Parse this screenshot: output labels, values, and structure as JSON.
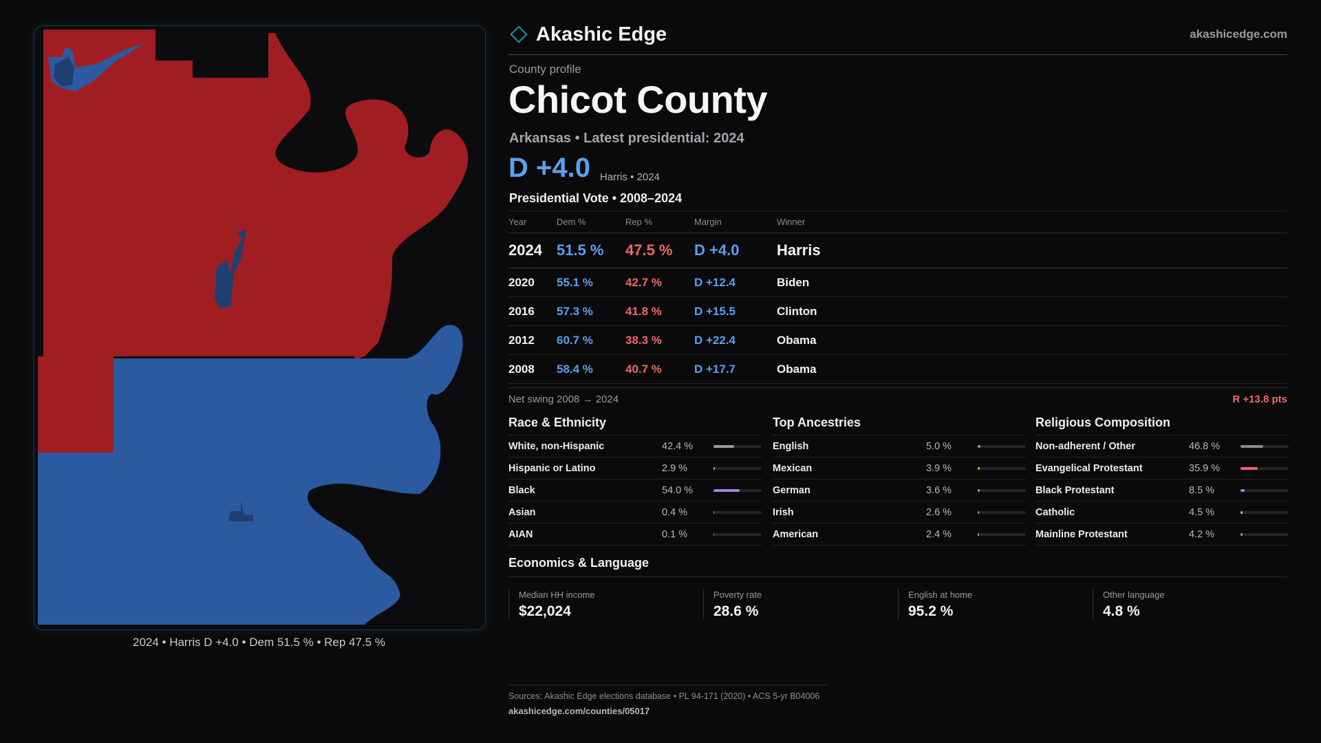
{
  "brand": {
    "name": "Akashic Edge",
    "url": "akashicedge.com",
    "accent": "#1e8fa0"
  },
  "header": {
    "eyebrow": "County profile",
    "title": "Chicot County",
    "subtitle": "Arkansas • Latest presidential: 2024",
    "margin": "D +4.0",
    "margin_note": "Harris • 2024"
  },
  "map": {
    "caption": "2024 • Harris D +4.0 • Dem 51.5 % • Rep 47.5 %",
    "colors": {
      "dem": "#2b5aa0",
      "rep": "#a01e22",
      "dem_dark": "#1f3f70"
    }
  },
  "results": {
    "title": "Presidential Vote • 2008–2024",
    "headers": {
      "year": "Year",
      "dem": "Dem %",
      "rep": "Rep %",
      "margin": "Margin",
      "winner": "Winner"
    },
    "rows": [
      {
        "year": "2024",
        "dem": "51.5 %",
        "rep": "47.5 %",
        "margin": "D +4.0",
        "winner": "Harris"
      },
      {
        "year": "2020",
        "dem": "55.1 %",
        "rep": "42.7 %",
        "margin": "D +12.4",
        "winner": "Biden"
      },
      {
        "year": "2016",
        "dem": "57.3 %",
        "rep": "41.8 %",
        "margin": "D +15.5",
        "winner": "Clinton"
      },
      {
        "year": "2012",
        "dem": "60.7 %",
        "rep": "38.3 %",
        "margin": "D +22.4",
        "winner": "Obama"
      },
      {
        "year": "2008",
        "dem": "58.4 %",
        "rep": "40.7 %",
        "margin": "D +17.7",
        "winner": "Obama"
      }
    ],
    "swing_label": "Net swing 2008 → 2024",
    "swing_value": "R +13.8 pts"
  },
  "race": {
    "title": "Race & Ethnicity",
    "items": [
      {
        "label": "White, non-Hispanic",
        "value": "42.4 %",
        "pct": 42.4,
        "color": "#9a9aa2"
      },
      {
        "label": "Hispanic or Latino",
        "value": "2.9 %",
        "pct": 2.9,
        "color": "#e8a040"
      },
      {
        "label": "Black",
        "value": "54.0 %",
        "pct": 54.0,
        "color": "#a080e8"
      },
      {
        "label": "Asian",
        "value": "0.4 %",
        "pct": 0.4,
        "color": "#40c0b0"
      },
      {
        "label": "AIAN",
        "value": "0.1 %",
        "pct": 0.1,
        "color": "#c08040"
      }
    ]
  },
  "ancestry": {
    "title": "Top Ancestries",
    "items": [
      {
        "label": "English",
        "value": "5.0 %",
        "pct": 5.0,
        "color": "#9a9aa2"
      },
      {
        "label": "Mexican",
        "value": "3.9 %",
        "pct": 3.9,
        "color": "#e8a040"
      },
      {
        "label": "German",
        "value": "3.6 %",
        "pct": 3.6,
        "color": "#9a9aa2"
      },
      {
        "label": "Irish",
        "value": "2.6 %",
        "pct": 2.6,
        "color": "#9a9aa2"
      },
      {
        "label": "American",
        "value": "2.4 %",
        "pct": 2.4,
        "color": "#9a9aa2"
      }
    ]
  },
  "religion": {
    "title": "Religious Composition",
    "items": [
      {
        "label": "Non-adherent / Other",
        "value": "46.8 %",
        "pct": 46.8,
        "color": "#8a8a92"
      },
      {
        "label": "Evangelical Protestant",
        "value": "35.9 %",
        "pct": 35.9,
        "color": "#f06070"
      },
      {
        "label": "Black Protestant",
        "value": "8.5 %",
        "pct": 8.5,
        "color": "#a080e8"
      },
      {
        "label": "Catholic",
        "value": "4.5 %",
        "pct": 4.5,
        "color": "#e8b040"
      },
      {
        "label": "Mainline Protestant",
        "value": "4.2 %",
        "pct": 4.2,
        "color": "#5aa0f0"
      }
    ]
  },
  "economics": {
    "title": "Economics & Language",
    "cards": [
      {
        "label": "Median HH income",
        "value": "$22,024"
      },
      {
        "label": "Poverty rate",
        "value": "28.6 %"
      },
      {
        "label": "English at home",
        "value": "95.2 %"
      },
      {
        "label": "Other language",
        "value": "4.8 %"
      }
    ]
  },
  "footer": {
    "sources": "Sources: Akashic Edge elections database • PL 94-171 (2020) • ACS 5-yr B04006",
    "url": "akashicedge.com/counties/05017"
  }
}
